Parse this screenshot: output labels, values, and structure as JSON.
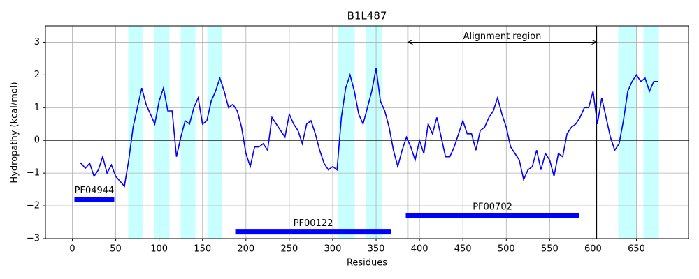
{
  "chart_data": {
    "type": "line",
    "title": "B1L487",
    "x_label": "Residues",
    "y_label": "Hydropathy (kcal/mol)",
    "x": [
      9,
      10,
      15,
      20,
      25,
      30,
      35,
      40,
      45,
      50,
      55,
      60,
      65,
      70,
      75,
      80,
      85,
      90,
      95,
      100,
      105,
      110,
      115,
      120,
      125,
      130,
      135,
      140,
      145,
      150,
      155,
      160,
      165,
      170,
      175,
      180,
      185,
      190,
      195,
      200,
      205,
      210,
      215,
      220,
      225,
      230,
      235,
      240,
      245,
      250,
      255,
      260,
      265,
      270,
      275,
      280,
      285,
      290,
      295,
      300,
      305,
      310,
      315,
      320,
      325,
      330,
      335,
      340,
      345,
      350,
      355,
      360,
      365,
      370,
      375,
      380,
      385,
      390,
      395,
      400,
      405,
      410,
      415,
      420,
      425,
      430,
      435,
      440,
      445,
      450,
      455,
      460,
      465,
      470,
      475,
      480,
      485,
      490,
      495,
      500,
      505,
      510,
      515,
      520,
      525,
      530,
      535,
      540,
      545,
      550,
      555,
      560,
      565,
      570,
      575,
      580,
      585,
      590,
      595,
      600,
      605,
      610,
      615,
      620,
      625,
      630,
      635,
      640,
      645,
      650,
      655,
      660,
      665,
      670,
      675
    ],
    "series": [
      {
        "color": "#0000ff",
        "values": [
          -0.7,
          -0.7,
          -0.85,
          -0.7,
          -1.1,
          -0.9,
          -0.5,
          -1.0,
          -0.75,
          -1.1,
          -1.25,
          -1.4,
          -0.6,
          0.4,
          1.0,
          1.6,
          1.1,
          0.8,
          0.5,
          1.2,
          1.6,
          0.9,
          0.9,
          -0.5,
          0.1,
          0.6,
          0.5,
          1.0,
          1.3,
          0.5,
          0.6,
          1.2,
          1.5,
          1.9,
          1.5,
          1.0,
          1.1,
          0.9,
          0.4,
          -0.4,
          -0.8,
          -0.2,
          -0.2,
          -0.1,
          -0.3,
          0.7,
          0.5,
          0.3,
          0.1,
          0.8,
          0.5,
          0.3,
          -0.1,
          0.5,
          0.6,
          0.2,
          -0.3,
          -0.7,
          -0.9,
          -0.8,
          -0.9,
          0.7,
          1.6,
          2.0,
          1.5,
          0.8,
          0.5,
          1.0,
          1.5,
          2.2,
          1.2,
          0.9,
          0.4,
          -0.3,
          -0.8,
          -0.3,
          0.1,
          -0.2,
          -0.6,
          0.0,
          -0.4,
          0.5,
          0.2,
          0.7,
          0.1,
          -0.5,
          -0.5,
          -0.2,
          0.2,
          0.6,
          0.2,
          0.2,
          -0.3,
          0.3,
          0.4,
          0.7,
          0.9,
          1.3,
          0.8,
          0.4,
          -0.2,
          -0.4,
          -0.6,
          -1.2,
          -0.9,
          -0.8,
          -0.3,
          -0.9,
          -0.4,
          -0.6,
          -1.1,
          -0.4,
          -0.5,
          0.2,
          0.4,
          0.5,
          0.7,
          1.0,
          1.0,
          1.5,
          0.5,
          1.3,
          0.7,
          0.1,
          -0.3,
          -0.1,
          0.6,
          1.5,
          1.8,
          2.0,
          1.8,
          1.9,
          1.5,
          1.8,
          1.8
        ]
      }
    ],
    "spans": [
      [
        64.4,
        81.4
      ],
      [
        94.2,
        112
      ],
      [
        124.8,
        141.8
      ],
      [
        155.5,
        172.4
      ],
      [
        306,
        325.4
      ],
      [
        338.3,
        356.8
      ],
      [
        629,
        650.8
      ],
      [
        658,
        675.8
      ]
    ],
    "span_color": "#c8ffff",
    "vlines": [
      386.6,
      604.1
    ],
    "hline": 0,
    "annotation": {
      "text": "Alignment region",
      "x": [
        386.6,
        604.1
      ],
      "y": 3
    },
    "domains": [
      {
        "name": "PF04944",
        "start": 2.4,
        "end": 48.3,
        "y": -1.8
      },
      {
        "name": "PF00122",
        "start": 187.7,
        "end": 367.3,
        "y": -2.8
      },
      {
        "name": "PF00702",
        "start": 384.2,
        "end": 584,
        "y": -2.3
      }
    ],
    "domain_color": "#0000ff",
    "xlim": [
      -31,
      710
    ],
    "ylim": [
      -3,
      3.5
    ],
    "xticks": [
      0,
      50,
      100,
      150,
      200,
      250,
      300,
      350,
      400,
      450,
      500,
      550,
      600,
      650
    ],
    "yticks": [
      {
        "value": -3,
        "label": "−3"
      },
      {
        "value": -2,
        "label": "−2"
      },
      {
        "value": -1,
        "label": "−1"
      },
      0,
      1,
      2,
      3
    ],
    "grid": true
  }
}
